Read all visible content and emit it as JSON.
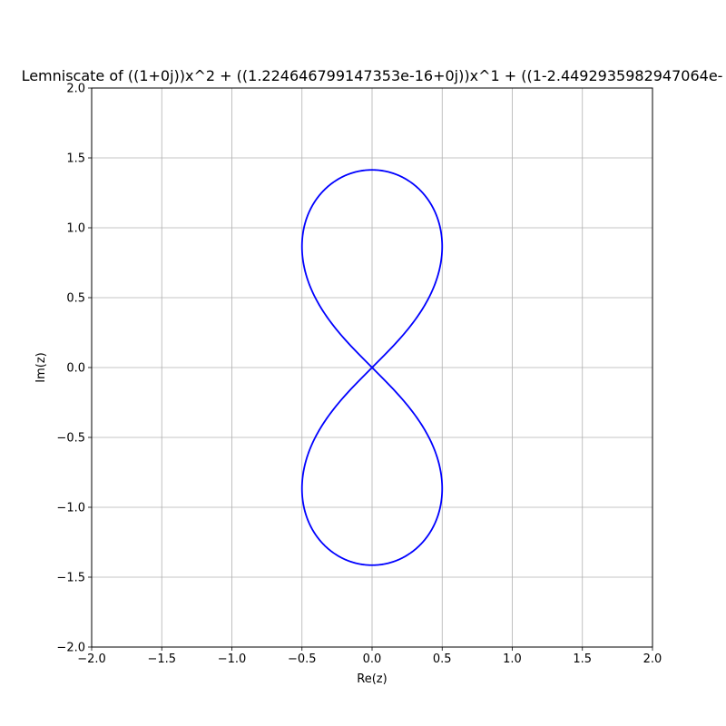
{
  "chart_data": {
    "type": "line",
    "title": "Lemniscate of ((1+0j))x^2 + ((1.224646799147353e-16+0j))x^1 + ((1-2.4492935982947064e-",
    "xlabel": "Re(z)",
    "ylabel": "Im(z)",
    "xlim": [
      -2.0,
      2.0
    ],
    "ylim": [
      -2.0,
      2.0
    ],
    "xticks": [
      -2.0,
      -1.5,
      -1.0,
      -0.5,
      0.0,
      0.5,
      1.0,
      1.5,
      2.0
    ],
    "yticks": [
      -2.0,
      -1.5,
      -1.0,
      -0.5,
      0.0,
      0.5,
      1.0,
      1.5,
      2.0
    ],
    "xtick_labels": [
      "−2.0",
      "−1.5",
      "−1.0",
      "−0.5",
      "0.0",
      "0.5",
      "1.0",
      "1.5",
      "2.0"
    ],
    "ytick_labels": [
      "−2.0",
      "−1.5",
      "−1.0",
      "−0.5",
      "0.0",
      "0.5",
      "1.0",
      "1.5",
      "2.0"
    ],
    "grid": true,
    "series": [
      {
        "color": "#0000ff",
        "curve": "lemniscate |z^2 + 1| = 1",
        "x": [
          0.0,
          0.25,
          0.4,
          0.48,
          0.5,
          0.48,
          0.4,
          0.25,
          0.0,
          -0.25,
          -0.4,
          -0.48,
          -0.5,
          -0.48,
          -0.4,
          -0.25,
          0.0
        ],
        "y": [
          1.414,
          1.37,
          1.24,
          1.05,
          0.866,
          0.65,
          0.45,
          0.2,
          0.0,
          -0.2,
          -0.45,
          -0.65,
          -0.866,
          -1.05,
          -1.24,
          -1.37,
          -1.414
        ]
      }
    ]
  }
}
